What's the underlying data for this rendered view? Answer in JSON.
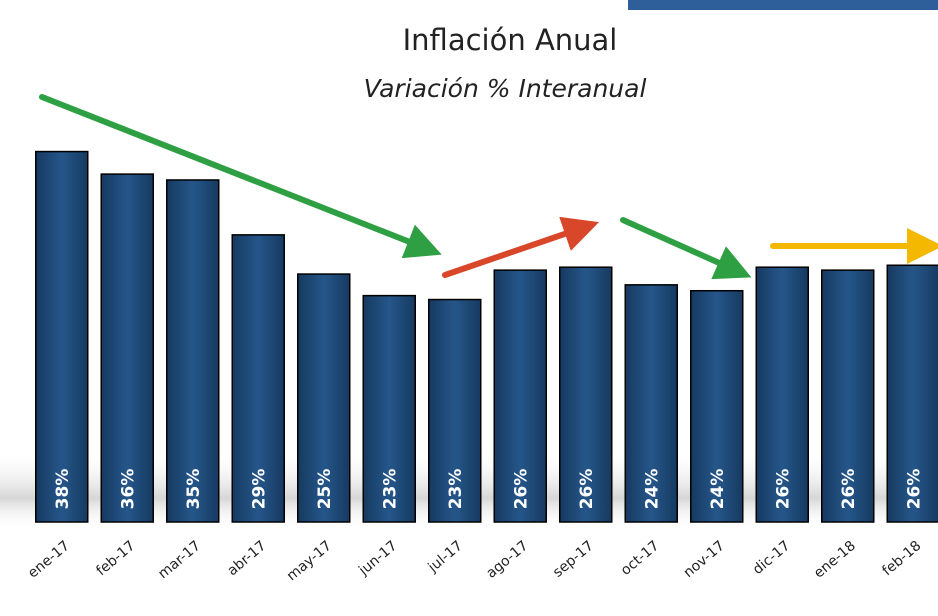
{
  "chart_data": {
    "type": "bar",
    "title": "Inflación Anual",
    "subtitle": "Variación % Interanual",
    "categories": [
      "ene-17",
      "feb-17",
      "mar-17",
      "abr-17",
      "may-17",
      "jun-17",
      "jul-17",
      "ago-17",
      "sep-17",
      "oct-17",
      "nov-17",
      "dic-17",
      "ene-18",
      "feb-18"
    ],
    "values": [
      37.8,
      35.5,
      34.9,
      29.3,
      25.3,
      23.1,
      22.7,
      25.7,
      26.0,
      24.2,
      23.6,
      26.0,
      25.7,
      26.2
    ],
    "value_labels": [
      "38%",
      "36%",
      "35%",
      "29%",
      "25%",
      "23%",
      "23%",
      "26%",
      "26%",
      "24%",
      "24%",
      "26%",
      "26%",
      "26%"
    ],
    "color": "#1f4b7a",
    "ylim": [
      0,
      40
    ]
  }
}
